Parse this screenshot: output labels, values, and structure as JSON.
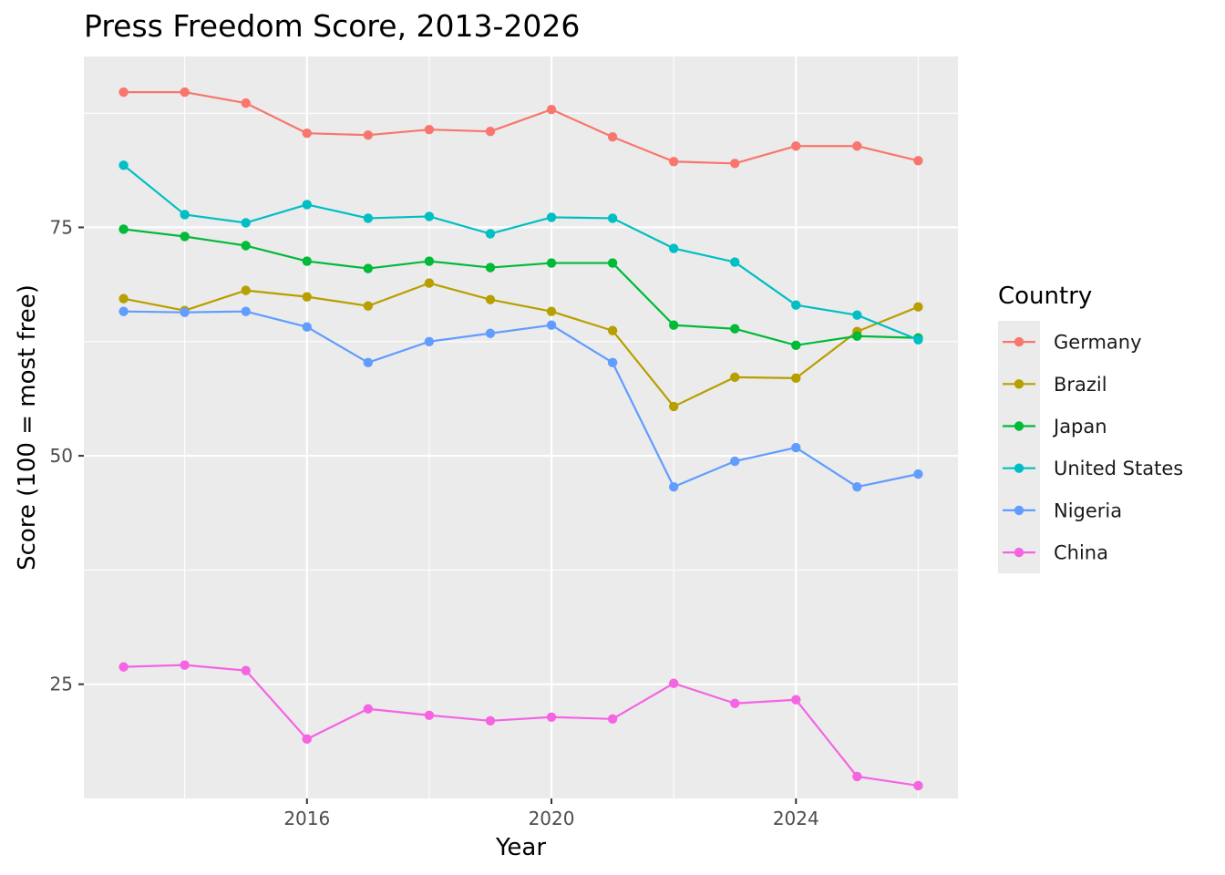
{
  "chart_data": {
    "type": "line",
    "title": "Press Freedom Score, 2013-2026",
    "xlabel": "Year",
    "ylabel": "Score (100 = most free)",
    "x": [
      2013,
      2014,
      2015,
      2016,
      2017,
      2018,
      2019,
      2020,
      2021,
      2022,
      2023,
      2024,
      2025,
      2026
    ],
    "xlim": [
      2012.35,
      2026.65
    ],
    "ylim": [
      12.5,
      93.7
    ],
    "x_ticks": [
      2016,
      2020,
      2024
    ],
    "y_ticks": [
      25,
      50,
      75
    ],
    "grid": true,
    "panel_background": "#ebebeb",
    "grid_color": "#ffffff",
    "legend": {
      "title": "Country",
      "position": "right"
    },
    "series": [
      {
        "name": "Germany",
        "color": "#f8766d",
        "values": [
          89.8,
          89.8,
          88.6,
          85.3,
          85.1,
          85.7,
          85.5,
          87.9,
          84.9,
          82.2,
          82.0,
          83.9,
          83.9,
          82.3
        ]
      },
      {
        "name": "Brazil",
        "color": "#b79f00",
        "values": [
          67.2,
          65.9,
          68.1,
          67.4,
          66.4,
          68.9,
          67.1,
          65.8,
          63.7,
          55.4,
          58.6,
          58.5,
          63.6,
          66.3
        ]
      },
      {
        "name": "Japan",
        "color": "#00ba38",
        "values": [
          74.8,
          74.0,
          73.0,
          71.3,
          70.5,
          71.3,
          70.6,
          71.1,
          71.1,
          64.3,
          63.9,
          62.1,
          63.1,
          62.9
        ]
      },
      {
        "name": "United States",
        "color": "#00bfc4",
        "values": [
          81.8,
          76.4,
          75.5,
          77.5,
          76.0,
          76.2,
          74.3,
          76.1,
          76.0,
          72.7,
          71.2,
          66.5,
          65.4,
          62.7
        ]
      },
      {
        "name": "Nigeria",
        "color": "#619cff",
        "values": [
          65.8,
          65.7,
          65.8,
          64.1,
          60.2,
          62.5,
          63.4,
          64.3,
          60.2,
          46.6,
          49.4,
          50.9,
          46.6,
          48.0
        ]
      },
      {
        "name": "China",
        "color": "#f564e3",
        "values": [
          26.9,
          27.1,
          26.5,
          19.0,
          22.3,
          21.6,
          21.0,
          21.4,
          21.2,
          25.1,
          22.9,
          23.3,
          14.9,
          13.9
        ]
      }
    ]
  }
}
